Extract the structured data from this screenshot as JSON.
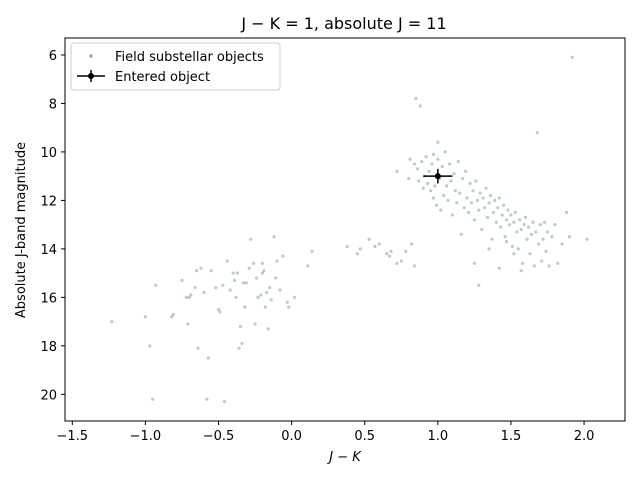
{
  "chart_data": {
    "type": "scatter",
    "title": "J − K = 1,  absolute J = 11",
    "xlabel": "J − K",
    "ylabel": "Absolute  J-band magnitude",
    "xlim": [
      -1.55,
      2.28
    ],
    "ylim": [
      21.1,
      5.3
    ],
    "y_inverted": true,
    "x_ticks": [
      -1.5,
      -1.0,
      -0.5,
      0.0,
      0.5,
      1.0,
      1.5,
      2.0
    ],
    "x_tick_labels": [
      "−1.5",
      "−1.0",
      "−0.5",
      "0.0",
      "0.5",
      "1.0",
      "1.5",
      "2.0"
    ],
    "y_ticks": [
      6,
      8,
      10,
      12,
      14,
      16,
      18,
      20
    ],
    "y_tick_labels": [
      "6",
      "8",
      "10",
      "12",
      "14",
      "16",
      "18",
      "20"
    ],
    "grid": false,
    "legend_position": "top-left",
    "series": [
      {
        "name": "Field substellar objects",
        "kind": "scatter",
        "color": "#8c9aa6",
        "points": [
          [
            -1.23,
            17.0
          ],
          [
            -1.0,
            16.8
          ],
          [
            -0.97,
            18.0
          ],
          [
            -0.95,
            20.2
          ],
          [
            -0.93,
            15.5
          ],
          [
            -0.82,
            16.8
          ],
          [
            -0.81,
            16.7
          ],
          [
            -0.75,
            15.3
          ],
          [
            -0.72,
            16.0
          ],
          [
            -0.71,
            17.1
          ],
          [
            -0.7,
            16.0
          ],
          [
            -0.69,
            15.9
          ],
          [
            -0.66,
            15.6
          ],
          [
            -0.65,
            14.9
          ],
          [
            -0.64,
            18.1
          ],
          [
            -0.62,
            14.8
          ],
          [
            -0.6,
            15.8
          ],
          [
            -0.58,
            20.2
          ],
          [
            -0.57,
            18.5
          ],
          [
            -0.55,
            14.9
          ],
          [
            -0.52,
            15.6
          ],
          [
            -0.5,
            16.5
          ],
          [
            -0.49,
            16.6
          ],
          [
            -0.47,
            15.5
          ],
          [
            -0.46,
            20.3
          ],
          [
            -0.44,
            14.5
          ],
          [
            -0.42,
            15.7
          ],
          [
            -0.4,
            15.0
          ],
          [
            -0.39,
            15.3
          ],
          [
            -0.38,
            16.0
          ],
          [
            -0.37,
            15.0
          ],
          [
            -0.36,
            18.1
          ],
          [
            -0.35,
            17.2
          ],
          [
            -0.34,
            17.9
          ],
          [
            -0.33,
            15.4
          ],
          [
            -0.32,
            16.4
          ],
          [
            -0.31,
            15.4
          ],
          [
            -0.29,
            14.8
          ],
          [
            -0.28,
            13.6
          ],
          [
            -0.26,
            14.6
          ],
          [
            -0.25,
            17.1
          ],
          [
            -0.24,
            15.2
          ],
          [
            -0.23,
            16.0
          ],
          [
            -0.21,
            15.9
          ],
          [
            -0.2,
            14.6
          ],
          [
            -0.2,
            15.0
          ],
          [
            -0.19,
            14.9
          ],
          [
            -0.18,
            16.4
          ],
          [
            -0.17,
            15.8
          ],
          [
            -0.16,
            17.3
          ],
          [
            -0.15,
            15.6
          ],
          [
            -0.14,
            16.1
          ],
          [
            -0.12,
            13.5
          ],
          [
            -0.11,
            15.2
          ],
          [
            -0.1,
            14.5
          ],
          [
            -0.08,
            15.7
          ],
          [
            -0.06,
            14.3
          ],
          [
            -0.03,
            16.2
          ],
          [
            -0.02,
            16.4
          ],
          [
            0.02,
            16.0
          ],
          [
            0.11,
            14.7
          ],
          [
            0.14,
            14.1
          ],
          [
            0.38,
            13.9
          ],
          [
            0.45,
            14.2
          ],
          [
            0.47,
            14.0
          ],
          [
            0.53,
            13.6
          ],
          [
            0.57,
            13.9
          ],
          [
            0.6,
            13.8
          ],
          [
            0.65,
            14.2
          ],
          [
            0.67,
            14.3
          ],
          [
            0.68,
            14.1
          ],
          [
            0.72,
            14.6
          ],
          [
            0.75,
            14.5
          ],
          [
            0.78,
            14.1
          ],
          [
            0.82,
            13.8
          ],
          [
            0.84,
            14.7
          ],
          [
            0.72,
            10.8
          ],
          [
            0.8,
            11.1
          ],
          [
            0.81,
            10.3
          ],
          [
            0.84,
            10.5
          ],
          [
            0.85,
            7.8
          ],
          [
            0.86,
            10.7
          ],
          [
            0.87,
            11.2
          ],
          [
            0.88,
            8.1
          ],
          [
            0.89,
            10.4
          ],
          [
            0.9,
            11.5
          ],
          [
            0.91,
            11.0
          ],
          [
            0.92,
            10.2
          ],
          [
            0.93,
            11.3
          ],
          [
            0.94,
            10.8
          ],
          [
            0.95,
            11.6
          ],
          [
            0.96,
            10.5
          ],
          [
            0.97,
            11.9
          ],
          [
            0.97,
            10.1
          ],
          [
            0.98,
            11.4
          ],
          [
            0.99,
            12.2
          ],
          [
            1.0,
            9.6
          ],
          [
            1.0,
            10.3
          ],
          [
            1.01,
            11.1
          ],
          [
            1.02,
            12.4
          ],
          [
            1.03,
            10.6
          ],
          [
            1.04,
            11.8
          ],
          [
            1.05,
            10.0
          ],
          [
            1.06,
            11.4
          ],
          [
            1.07,
            12.0
          ],
          [
            1.08,
            10.5
          ],
          [
            1.09,
            11.2
          ],
          [
            1.1,
            12.6
          ],
          [
            1.11,
            10.9
          ],
          [
            1.12,
            11.6
          ],
          [
            1.13,
            12.1
          ],
          [
            1.14,
            10.4
          ],
          [
            1.15,
            11.7
          ],
          [
            1.16,
            13.4
          ],
          [
            1.17,
            11.1
          ],
          [
            1.18,
            12.3
          ],
          [
            1.19,
            10.8
          ],
          [
            1.2,
            11.9
          ],
          [
            1.21,
            12.5
          ],
          [
            1.22,
            11.3
          ],
          [
            1.23,
            12.1
          ],
          [
            1.24,
            11.6
          ],
          [
            1.25,
            12.8
          ],
          [
            1.26,
            11.2
          ],
          [
            1.27,
            12.0
          ],
          [
            1.28,
            12.4
          ],
          [
            1.29,
            11.7
          ],
          [
            1.3,
            13.2
          ],
          [
            1.31,
            11.9
          ],
          [
            1.32,
            12.3
          ],
          [
            1.33,
            11.5
          ],
          [
            1.34,
            12.7
          ],
          [
            1.35,
            12.1
          ],
          [
            1.36,
            11.8
          ],
          [
            1.37,
            13.6
          ],
          [
            1.38,
            12.5
          ],
          [
            1.39,
            12.0
          ],
          [
            1.4,
            12.9
          ],
          [
            1.41,
            12.3
          ],
          [
            1.42,
            11.9
          ],
          [
            1.43,
            13.1
          ],
          [
            1.44,
            12.6
          ],
          [
            1.45,
            12.2
          ],
          [
            1.46,
            13.5
          ],
          [
            1.47,
            12.8
          ],
          [
            1.48,
            12.4
          ],
          [
            1.49,
            13.0
          ],
          [
            1.5,
            12.6
          ],
          [
            1.51,
            13.9
          ],
          [
            1.52,
            12.9
          ],
          [
            1.53,
            12.5
          ],
          [
            1.54,
            13.3
          ],
          [
            1.55,
            14.0
          ],
          [
            1.56,
            12.8
          ],
          [
            1.57,
            13.2
          ],
          [
            1.58,
            14.6
          ],
          [
            1.59,
            13.0
          ],
          [
            1.6,
            12.7
          ],
          [
            1.61,
            13.6
          ],
          [
            1.62,
            13.1
          ],
          [
            1.63,
            14.2
          ],
          [
            1.64,
            13.4
          ],
          [
            1.65,
            12.9
          ],
          [
            1.66,
            14.7
          ],
          [
            1.67,
            13.3
          ],
          [
            1.68,
            9.2
          ],
          [
            1.69,
            13.8
          ],
          [
            1.7,
            13.0
          ],
          [
            1.71,
            14.5
          ],
          [
            1.72,
            13.6
          ],
          [
            1.73,
            12.9
          ],
          [
            1.74,
            14.1
          ],
          [
            1.75,
            13.3
          ],
          [
            1.76,
            14.7
          ],
          [
            1.78,
            13.5
          ],
          [
            1.8,
            13.0
          ],
          [
            1.82,
            14.6
          ],
          [
            1.85,
            13.8
          ],
          [
            1.88,
            12.5
          ],
          [
            1.9,
            13.5
          ],
          [
            1.92,
            6.1
          ],
          [
            2.02,
            13.6
          ],
          [
            1.25,
            14.6
          ],
          [
            1.28,
            15.5
          ],
          [
            1.35,
            14.0
          ],
          [
            1.42,
            14.8
          ],
          [
            1.47,
            13.7
          ],
          [
            1.52,
            14.2
          ],
          [
            1.57,
            14.9
          ]
        ]
      },
      {
        "name": "Entered object",
        "kind": "errorbar",
        "color": "#000000",
        "x": 1.0,
        "y": 11.0,
        "xerr": 0.1,
        "yerr": 0.3
      }
    ]
  }
}
